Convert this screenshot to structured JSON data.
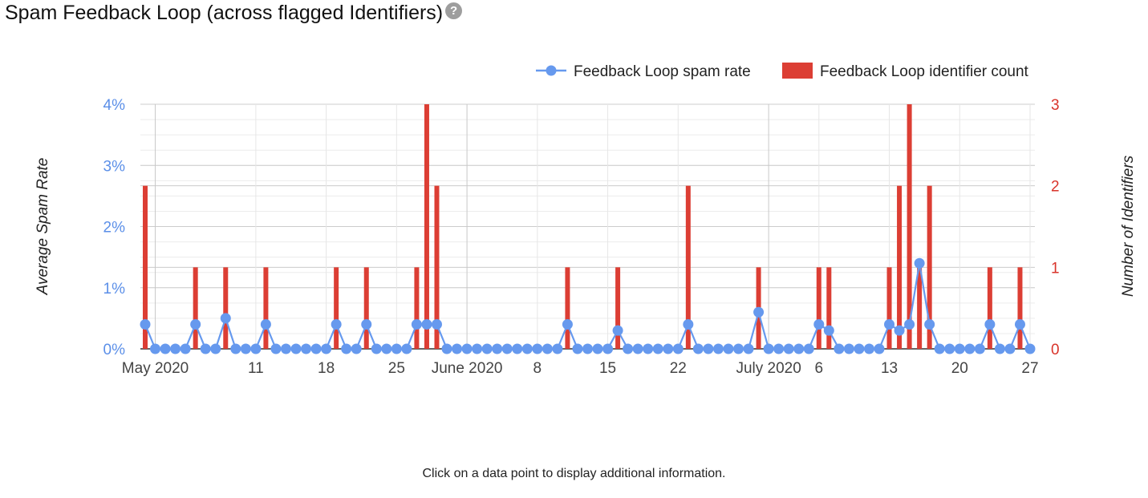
{
  "header": {
    "title": "Spam Feedback Loop (across flagged Identifiers)",
    "help_icon": "question-circle-icon"
  },
  "chart_data": {
    "type": "bar+line",
    "title": "Spam Feedback Loop (across flagged Identifiers)",
    "y_left_label": "Average Spam Rate",
    "y_right_label": "Number of Identifiers",
    "y_left_ticks": [
      "0%",
      "1%",
      "2%",
      "3%",
      "4%"
    ],
    "y_left_range": [
      0,
      4
    ],
    "y_right_ticks": [
      "0",
      "1",
      "2",
      "3"
    ],
    "y_right_range": [
      0,
      3
    ],
    "x_range": [
      "2020-04-30",
      "2020-07-27"
    ],
    "x_tick_labels": [
      {
        "date": "2020-05-01",
        "label": "May 2020"
      },
      {
        "date": "2020-05-11",
        "label": "11"
      },
      {
        "date": "2020-05-18",
        "label": "18"
      },
      {
        "date": "2020-05-25",
        "label": "25"
      },
      {
        "date": "2020-06-01",
        "label": "June 2020"
      },
      {
        "date": "2020-06-08",
        "label": "8"
      },
      {
        "date": "2020-06-15",
        "label": "15"
      },
      {
        "date": "2020-06-22",
        "label": "22"
      },
      {
        "date": "2020-07-01",
        "label": "July 2020"
      },
      {
        "date": "2020-07-06",
        "label": "6"
      },
      {
        "date": "2020-07-13",
        "label": "13"
      },
      {
        "date": "2020-07-20",
        "label": "20"
      },
      {
        "date": "2020-07-27",
        "label": "27"
      }
    ],
    "legend_position": "top-right",
    "grid": true,
    "series": [
      {
        "name": "Feedback Loop spam rate",
        "kind": "line",
        "axis": "left",
        "unit": "%",
        "color": "#6699ee",
        "points": [
          [
            "2020-04-30",
            0.4
          ],
          [
            "2020-05-01",
            0
          ],
          [
            "2020-05-02",
            0
          ],
          [
            "2020-05-03",
            0
          ],
          [
            "2020-05-04",
            0
          ],
          [
            "2020-05-05",
            0.4
          ],
          [
            "2020-05-06",
            0
          ],
          [
            "2020-05-07",
            0
          ],
          [
            "2020-05-08",
            0.5
          ],
          [
            "2020-05-09",
            0
          ],
          [
            "2020-05-10",
            0
          ],
          [
            "2020-05-11",
            0
          ],
          [
            "2020-05-12",
            0.4
          ],
          [
            "2020-05-13",
            0
          ],
          [
            "2020-05-14",
            0
          ],
          [
            "2020-05-15",
            0
          ],
          [
            "2020-05-16",
            0
          ],
          [
            "2020-05-17",
            0
          ],
          [
            "2020-05-18",
            0
          ],
          [
            "2020-05-19",
            0.4
          ],
          [
            "2020-05-20",
            0
          ],
          [
            "2020-05-21",
            0
          ],
          [
            "2020-05-22",
            0.4
          ],
          [
            "2020-05-23",
            0
          ],
          [
            "2020-05-24",
            0
          ],
          [
            "2020-05-25",
            0
          ],
          [
            "2020-05-26",
            0
          ],
          [
            "2020-05-27",
            0.4
          ],
          [
            "2020-05-28",
            0.4
          ],
          [
            "2020-05-29",
            0.4
          ],
          [
            "2020-05-30",
            0
          ],
          [
            "2020-05-31",
            0
          ],
          [
            "2020-06-01",
            0
          ],
          [
            "2020-06-02",
            0
          ],
          [
            "2020-06-03",
            0
          ],
          [
            "2020-06-04",
            0
          ],
          [
            "2020-06-05",
            0
          ],
          [
            "2020-06-06",
            0
          ],
          [
            "2020-06-07",
            0
          ],
          [
            "2020-06-08",
            0
          ],
          [
            "2020-06-09",
            0
          ],
          [
            "2020-06-10",
            0
          ],
          [
            "2020-06-11",
            0.4
          ],
          [
            "2020-06-12",
            0
          ],
          [
            "2020-06-13",
            0
          ],
          [
            "2020-06-14",
            0
          ],
          [
            "2020-06-15",
            0
          ],
          [
            "2020-06-16",
            0.3
          ],
          [
            "2020-06-17",
            0
          ],
          [
            "2020-06-18",
            0
          ],
          [
            "2020-06-19",
            0
          ],
          [
            "2020-06-20",
            0
          ],
          [
            "2020-06-21",
            0
          ],
          [
            "2020-06-22",
            0
          ],
          [
            "2020-06-23",
            0.4
          ],
          [
            "2020-06-24",
            0
          ],
          [
            "2020-06-25",
            0
          ],
          [
            "2020-06-26",
            0
          ],
          [
            "2020-06-27",
            0
          ],
          [
            "2020-06-28",
            0
          ],
          [
            "2020-06-29",
            0
          ],
          [
            "2020-06-30",
            0.6
          ],
          [
            "2020-07-01",
            0
          ],
          [
            "2020-07-02",
            0
          ],
          [
            "2020-07-03",
            0
          ],
          [
            "2020-07-04",
            0
          ],
          [
            "2020-07-05",
            0
          ],
          [
            "2020-07-06",
            0.4
          ],
          [
            "2020-07-07",
            0.3
          ],
          [
            "2020-07-08",
            0
          ],
          [
            "2020-07-09",
            0
          ],
          [
            "2020-07-10",
            0
          ],
          [
            "2020-07-11",
            0
          ],
          [
            "2020-07-12",
            0
          ],
          [
            "2020-07-13",
            0.4
          ],
          [
            "2020-07-14",
            0.3
          ],
          [
            "2020-07-15",
            0.4
          ],
          [
            "2020-07-16",
            1.4
          ],
          [
            "2020-07-17",
            0.4
          ],
          [
            "2020-07-18",
            0
          ],
          [
            "2020-07-19",
            0
          ],
          [
            "2020-07-20",
            0
          ],
          [
            "2020-07-21",
            0
          ],
          [
            "2020-07-22",
            0
          ],
          [
            "2020-07-23",
            0.4
          ],
          [
            "2020-07-24",
            0
          ],
          [
            "2020-07-25",
            0
          ],
          [
            "2020-07-26",
            0.4
          ],
          [
            "2020-07-27",
            0
          ]
        ]
      },
      {
        "name": "Feedback Loop identifier count",
        "kind": "bar",
        "axis": "right",
        "color": "#dc3e34",
        "points": [
          [
            "2020-04-30",
            2
          ],
          [
            "2020-05-05",
            1
          ],
          [
            "2020-05-08",
            1
          ],
          [
            "2020-05-12",
            1
          ],
          [
            "2020-05-19",
            1
          ],
          [
            "2020-05-22",
            1
          ],
          [
            "2020-05-27",
            1
          ],
          [
            "2020-05-28",
            3
          ],
          [
            "2020-05-29",
            2
          ],
          [
            "2020-06-11",
            1
          ],
          [
            "2020-06-16",
            1
          ],
          [
            "2020-06-23",
            2
          ],
          [
            "2020-06-30",
            1
          ],
          [
            "2020-07-06",
            1
          ],
          [
            "2020-07-07",
            1
          ],
          [
            "2020-07-13",
            1
          ],
          [
            "2020-07-14",
            2
          ],
          [
            "2020-07-15",
            3
          ],
          [
            "2020-07-16",
            1
          ],
          [
            "2020-07-17",
            2
          ],
          [
            "2020-07-23",
            1
          ],
          [
            "2020-07-26",
            1
          ]
        ]
      }
    ]
  },
  "footer": {
    "hint": "Click on a data point to display additional information."
  }
}
